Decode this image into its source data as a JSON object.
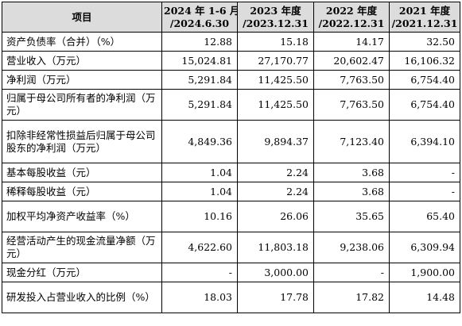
{
  "header": {
    "item_label": "项目",
    "periods": [
      {
        "line1": "2024 年 1-6 月",
        "line2": "/2024.6.30"
      },
      {
        "line1": "2023 年度",
        "line2": "/2023.12.31"
      },
      {
        "line1": "2022 年度",
        "line2": "/2022.12.31"
      },
      {
        "line1": "2021 年度",
        "line2": "/2021.12.31"
      }
    ]
  },
  "rows": [
    {
      "label": "资产负债率（合并）（%）",
      "values": [
        "12.88",
        "15.18",
        "14.17",
        "32.50"
      ]
    },
    {
      "label": "营业收入（万元）",
      "values": [
        "15,024.81",
        "27,170.77",
        "20,602.47",
        "16,106.32"
      ]
    },
    {
      "label": "净利润（万元）",
      "values": [
        "5,291.84",
        "11,425.50",
        "7,763.50",
        "6,754.40"
      ]
    },
    {
      "label": "归属于母公司所有者的净利润（万元）",
      "values": [
        "5,291.84",
        "11,425.50",
        "7,763.50",
        "6,754.40"
      ]
    },
    {
      "label": "扣除非经常性损益后归属于母公司股东的净利润（万元）",
      "values": [
        "4,849.36",
        "9,894.37",
        "7,123.40",
        "6,394.10"
      ]
    },
    {
      "label": "基本每股收益（元）",
      "values": [
        "1.04",
        "2.24",
        "3.68",
        "-"
      ]
    },
    {
      "label": "稀释每股收益（元）",
      "values": [
        "1.04",
        "2.24",
        "3.68",
        "-"
      ]
    },
    {
      "label": "加权平均净资产收益率（%）",
      "values": [
        "10.16",
        "26.06",
        "35.65",
        "65.40"
      ]
    },
    {
      "label": "经营活动产生的现金流量净额（万元）",
      "values": [
        "4,622.60",
        "11,803.18",
        "9,238.06",
        "6,309.94"
      ]
    },
    {
      "label": "现金分红（万元）",
      "values": [
        "-",
        "3,000.00",
        "-",
        "1,900.00"
      ]
    },
    {
      "label": "研发投入占营业收入的比例（%）",
      "values": [
        "18.03",
        "17.78",
        "17.82",
        "14.48"
      ]
    }
  ]
}
